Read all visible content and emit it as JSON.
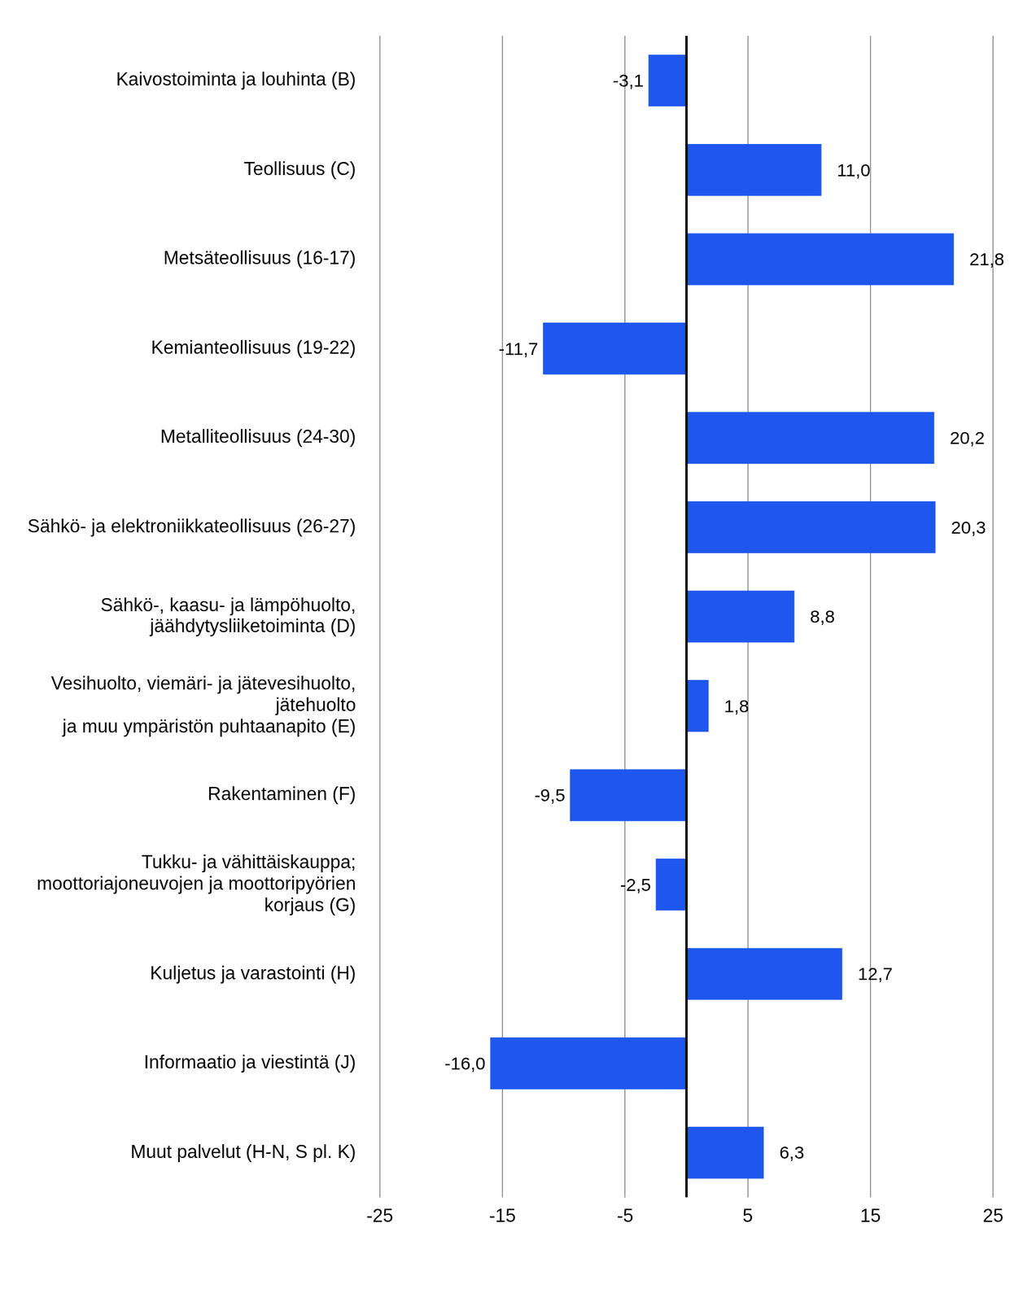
{
  "chart_data": {
    "type": "bar",
    "orientation": "horizontal",
    "categories": [
      "Kaivostoiminta ja louhinta (B)",
      "Teollisuus (C)",
      "Metsäteollisuus (16-17)",
      "Kemianteollisuus (19-22)",
      "Metalliteollisuus (24-30)",
      "Sähkö- ja elektroniikkateollisuus (26-27)",
      "Sähkö-, kaasu- ja lämpöhuolto,\njäähdytysliiketoiminta (D)",
      "Vesihuolto, viemäri- ja jätevesihuolto,\njätehuolto\nja muu ympäristön puhtaanapito (E)",
      "Rakentaminen (F)",
      "Tukku- ja vähittäiskauppa;\nmoottoriajoneuvojen ja moottoripyörien\nkorjaus (G)",
      "Kuljetus ja varastointi (H)",
      "Informaatio ja viestintä (J)",
      "Muut palvelut (H-N, S pl. K)"
    ],
    "values": [
      -3.1,
      11.0,
      21.8,
      -11.7,
      20.2,
      20.3,
      8.8,
      1.8,
      -9.5,
      -2.5,
      12.7,
      -16.0,
      6.3
    ],
    "value_labels": [
      "-3,1",
      "11,0",
      "21,8",
      "-11,7",
      "20,2",
      "20,3",
      "8,8",
      "1,8",
      "-9,5",
      "-2,5",
      "12,7",
      "-16,0",
      "6,3"
    ],
    "color": "#1f57ee",
    "xlim": [
      -25,
      25
    ],
    "xticks": [
      -25,
      -15,
      -5,
      5,
      15,
      25
    ],
    "grid": true,
    "data_labels": true
  }
}
